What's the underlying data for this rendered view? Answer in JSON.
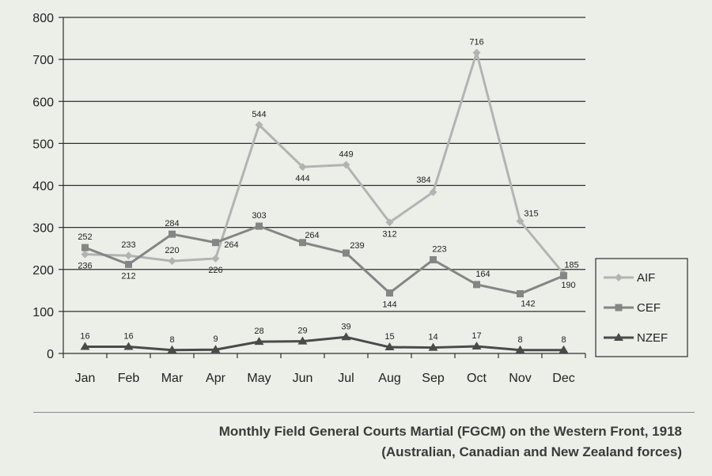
{
  "caption": {
    "title": "Monthly Field General Courts Martial (FGCM) on the Western Front, 1918",
    "subtitle": "(Australian, Canadian and New Zealand forces)"
  },
  "chart_data": {
    "type": "line",
    "title": "",
    "xlabel": "",
    "ylabel": "",
    "categories": [
      "Jan",
      "Feb",
      "Mar",
      "Apr",
      "May",
      "Jun",
      "Jul",
      "Aug",
      "Sep",
      "Oct",
      "Nov",
      "Dec"
    ],
    "ylim": [
      0,
      800
    ],
    "yticks": [
      0,
      100,
      200,
      300,
      400,
      500,
      600,
      700,
      800
    ],
    "grid": true,
    "legend_position": "right",
    "series": [
      {
        "name": "AIF",
        "marker": "diamond",
        "color": "#b3b3b3",
        "values": [
          236,
          233,
          220,
          226,
          544,
          444,
          449,
          312,
          384,
          716,
          315,
          190
        ]
      },
      {
        "name": "CEF",
        "marker": "square",
        "color": "#858585",
        "values": [
          252,
          212,
          284,
          264,
          303,
          264,
          239,
          144,
          223,
          164,
          142,
          185
        ]
      },
      {
        "name": "NZEF",
        "marker": "triangle",
        "color": "#4a4a4a",
        "values": [
          16,
          16,
          8,
          9,
          28,
          29,
          39,
          15,
          14,
          17,
          8,
          8
        ]
      }
    ]
  }
}
